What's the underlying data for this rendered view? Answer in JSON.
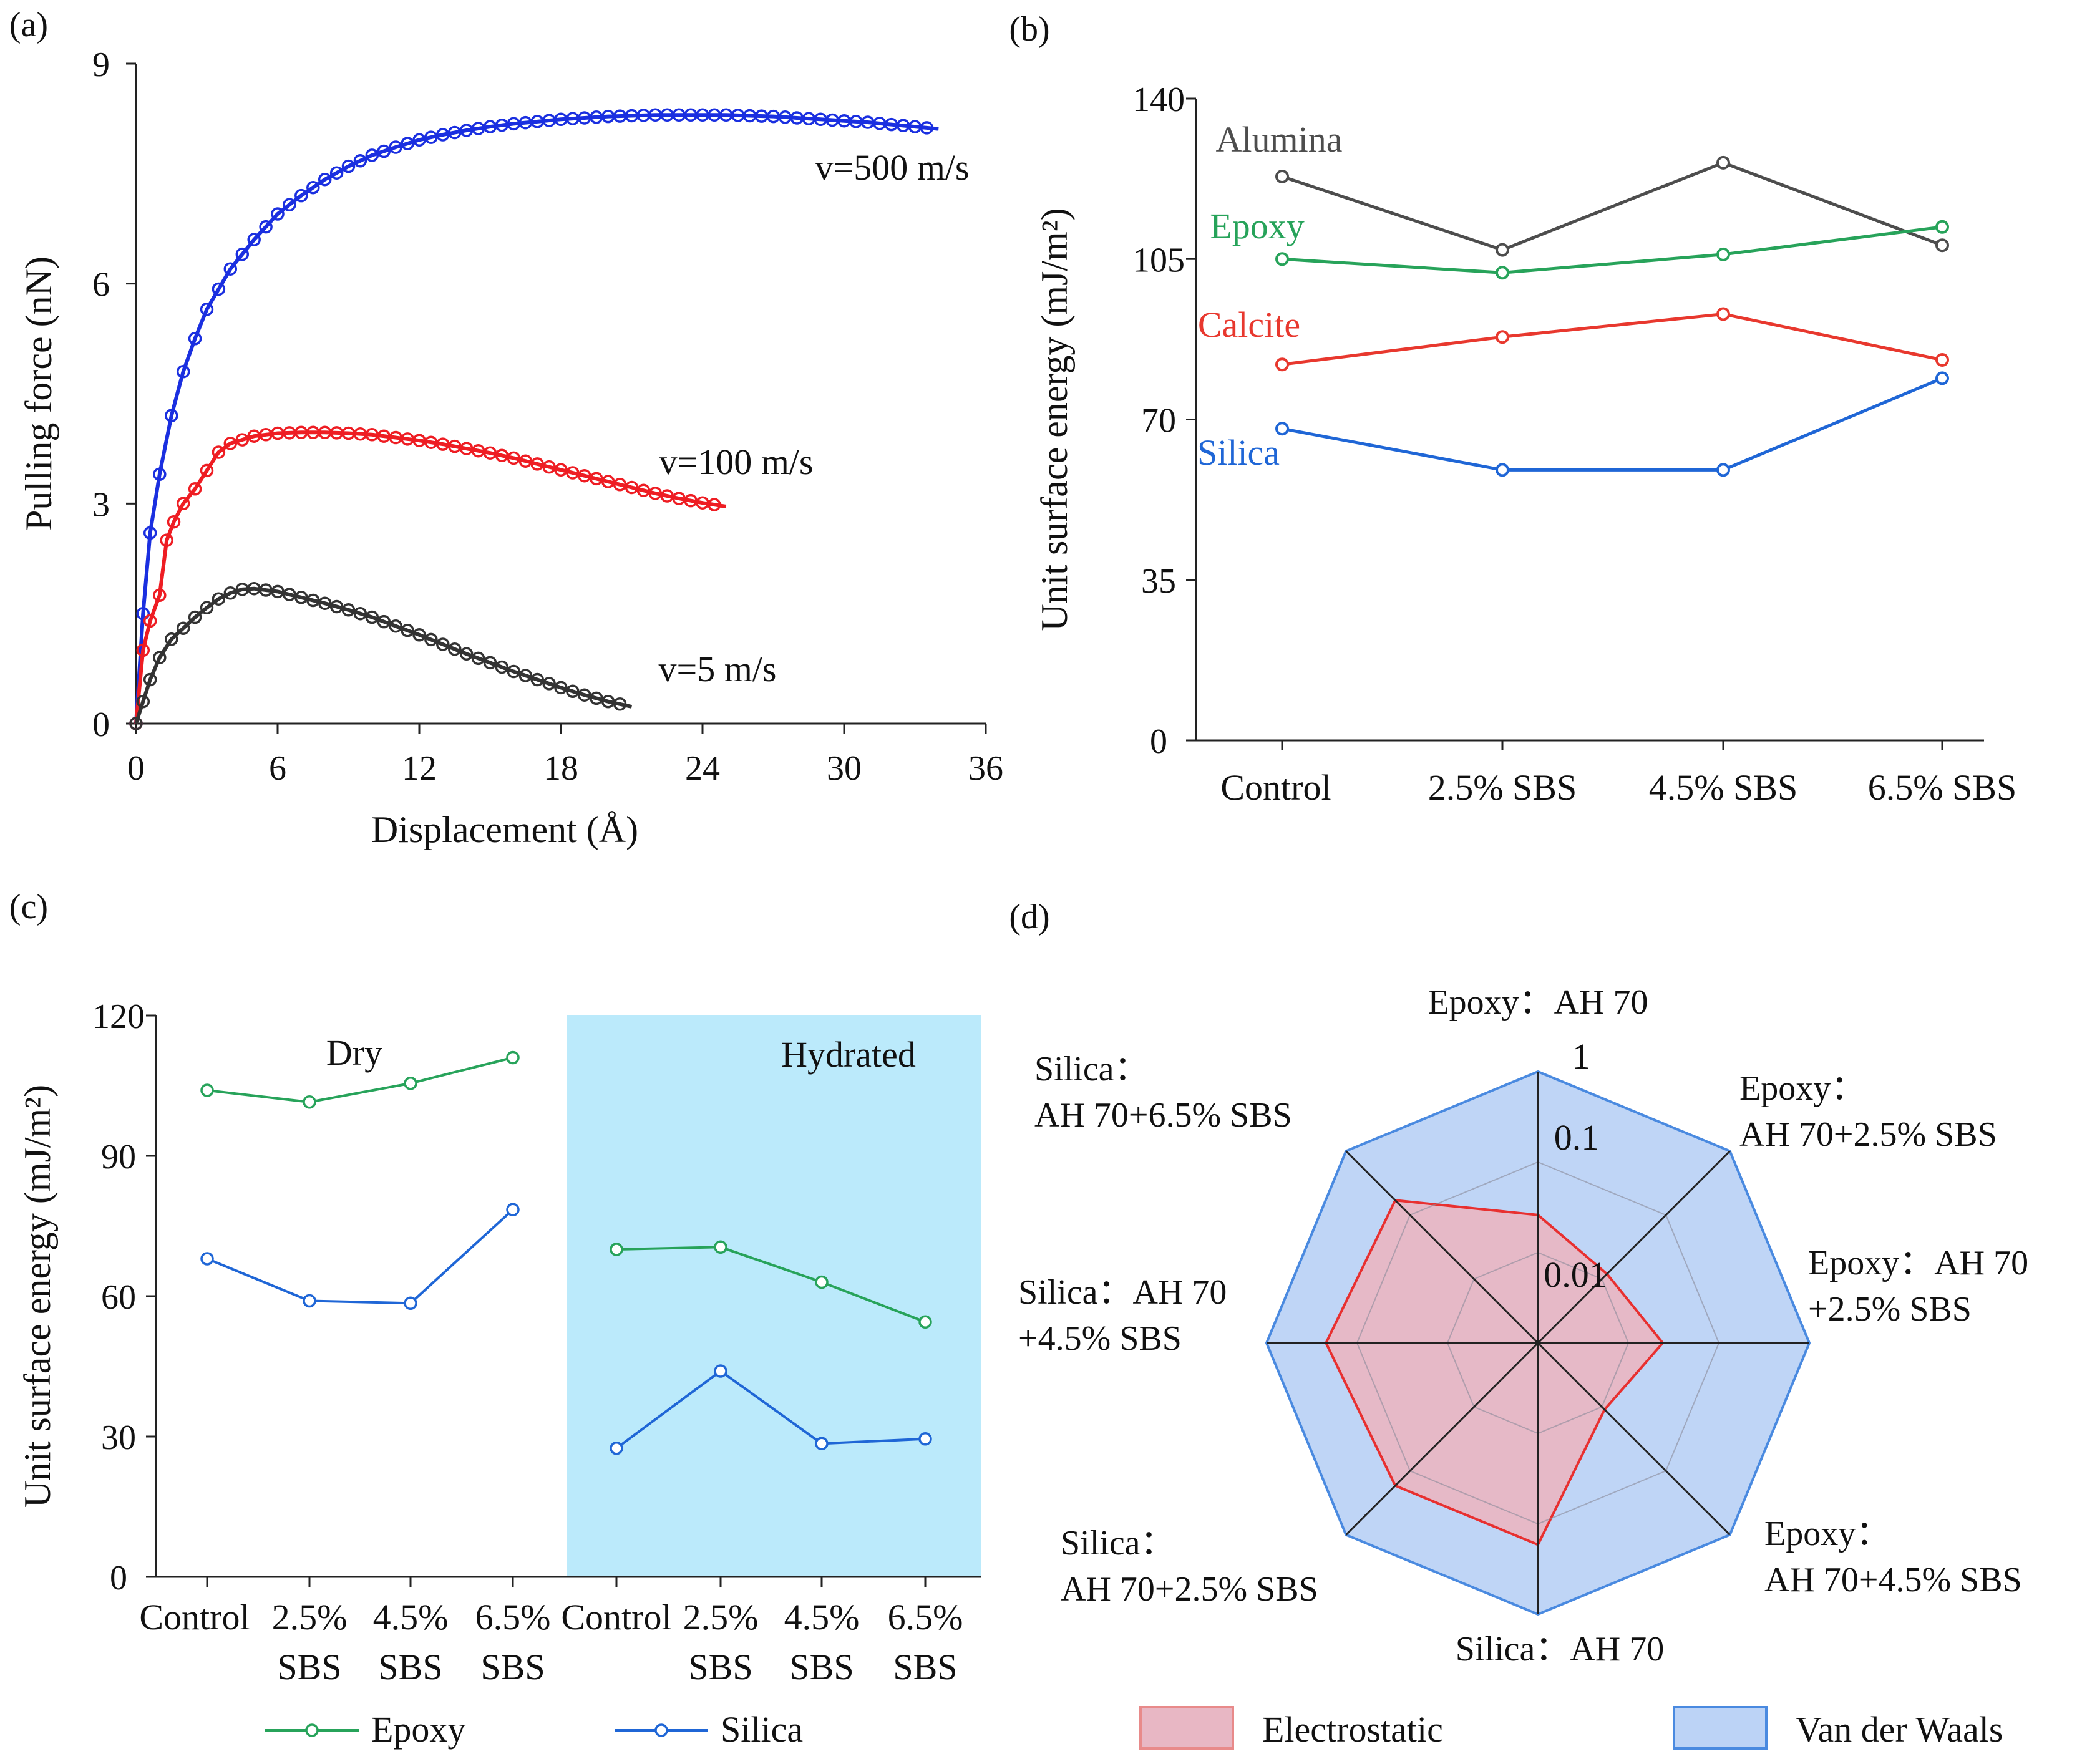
{
  "colors": {
    "blue500": "#1a2fe0",
    "red100": "#ee1d23",
    "black5": "#333333",
    "alumina": "#4d4d4d",
    "epoxy": "#27a35a",
    "calcite": "#e8382e",
    "silica": "#1f66d6",
    "hydrated_bg": "#bbeafb",
    "radar_vdw": "#bcd3f6",
    "radar_vdw_stroke": "#4a8ae0",
    "radar_es": "#e8b7c4",
    "radar_es_stroke": "#e83030"
  },
  "chart_data": [
    {
      "panel": "(a)",
      "type": "line",
      "xlabel": "Displacement (Å)",
      "ylabel": "Pulling force (nN)",
      "xlim": [
        0,
        36
      ],
      "ylim": [
        0,
        9
      ],
      "xticks": [
        "0",
        "6",
        "12",
        "18",
        "24",
        "30",
        "36"
      ],
      "yticks": [
        "0",
        "3",
        "6",
        "9"
      ],
      "series": [
        {
          "name": "v=500 m/s",
          "label": "v=500 m/s",
          "color_key": "blue500",
          "x": [
            0,
            0.3,
            0.6,
            1,
            1.5,
            2,
            2.5,
            3,
            4,
            5,
            6,
            7,
            8,
            9,
            10,
            11,
            12,
            13,
            14,
            15,
            16,
            17,
            18,
            19,
            20,
            21,
            22,
            23,
            24,
            25,
            26,
            27,
            28,
            29,
            30,
            31,
            32,
            33,
            34
          ],
          "y": [
            0,
            1.5,
            2.6,
            3.4,
            4.2,
            4.8,
            5.25,
            5.65,
            6.2,
            6.6,
            6.95,
            7.2,
            7.42,
            7.6,
            7.75,
            7.86,
            7.96,
            8.03,
            8.09,
            8.14,
            8.18,
            8.21,
            8.24,
            8.26,
            8.28,
            8.29,
            8.3,
            8.3,
            8.3,
            8.3,
            8.29,
            8.28,
            8.26,
            8.24,
            8.22,
            8.2,
            8.17,
            8.14,
            8.11
          ]
        },
        {
          "name": "v=100 m/s",
          "label": "v=100 m/s",
          "color_key": "red100",
          "x": [
            0,
            0.3,
            0.6,
            1,
            1.3,
            1.6,
            2,
            2.5,
            3,
            3.5,
            4,
            5,
            6,
            7,
            8,
            9,
            10,
            11,
            12,
            13,
            14,
            15,
            16,
            17,
            18,
            19,
            20,
            21,
            22,
            23,
            24,
            25
          ],
          "y": [
            0,
            1.0,
            1.4,
            1.75,
            2.5,
            2.75,
            3.0,
            3.2,
            3.45,
            3.7,
            3.82,
            3.92,
            3.96,
            3.97,
            3.97,
            3.96,
            3.94,
            3.9,
            3.86,
            3.81,
            3.75,
            3.69,
            3.62,
            3.54,
            3.46,
            3.38,
            3.3,
            3.22,
            3.14,
            3.07,
            3.01,
            2.96
          ]
        },
        {
          "name": "v=5 m/s",
          "label": "v=5 m/s",
          "color_key": "black5",
          "x": [
            0,
            0.3,
            0.6,
            1,
            1.5,
            2,
            2.5,
            3,
            3.5,
            4,
            4.5,
            5,
            6,
            7,
            8,
            9,
            10,
            11,
            12,
            13,
            14,
            15,
            16,
            17,
            18,
            19,
            20,
            21
          ],
          "y": [
            0,
            0.3,
            0.6,
            0.9,
            1.15,
            1.3,
            1.45,
            1.58,
            1.7,
            1.78,
            1.83,
            1.84,
            1.8,
            1.72,
            1.64,
            1.55,
            1.45,
            1.33,
            1.21,
            1.08,
            0.95,
            0.83,
            0.71,
            0.6,
            0.49,
            0.39,
            0.3,
            0.23
          ]
        }
      ]
    },
    {
      "panel": "(b)",
      "type": "line",
      "ylabel": "Unit surface energy (mJ/m²)",
      "ylim": [
        0,
        140
      ],
      "yticks": [
        "0",
        "35",
        "70",
        "105",
        "140"
      ],
      "categories": [
        "Control",
        "2.5% SBS",
        "4.5% SBS",
        "6.5% SBS"
      ],
      "series": [
        {
          "name": "Alumina",
          "color_key": "alumina",
          "values": [
            123,
            107,
            126,
            108
          ]
        },
        {
          "name": "Epoxy",
          "color_key": "epoxy",
          "values": [
            105,
            102,
            106,
            112
          ]
        },
        {
          "name": "Calcite",
          "color_key": "calcite",
          "values": [
            82,
            88,
            93,
            83
          ]
        },
        {
          "name": "Silica",
          "color_key": "silica",
          "values": [
            68,
            59,
            59,
            79
          ]
        }
      ]
    },
    {
      "panel": "(c)",
      "type": "line",
      "ylabel": "Unit surface energy (mJ/m²)",
      "ylim": [
        0,
        120
      ],
      "yticks": [
        "0",
        "30",
        "60",
        "90",
        "120"
      ],
      "categories": [
        "Control",
        "2.5% SBS",
        "4.5% SBS",
        "6.5% SBS",
        "Control",
        "2.5% SBS",
        "4.5% SBS",
        "6.5% SBS"
      ],
      "category_lines": [
        [
          "Control"
        ],
        [
          "2.5%",
          "SBS"
        ],
        [
          "4.5%",
          "SBS"
        ],
        [
          "6.5%",
          "SBS"
        ],
        [
          "Control"
        ],
        [
          "2.5%",
          "SBS"
        ],
        [
          "4.5%",
          "SBS"
        ],
        [
          "6.5%",
          "SBS"
        ]
      ],
      "regions": [
        "Dry",
        "Hydrated"
      ],
      "series": [
        {
          "name": "Epoxy",
          "color_key": "epoxy",
          "values": [
            104,
            101.5,
            105.5,
            111,
            70,
            70.5,
            63,
            54.5
          ]
        },
        {
          "name": "Silica",
          "color_key": "silica",
          "values": [
            68,
            59,
            58.5,
            78.5,
            27.5,
            44,
            28.5,
            29.5
          ]
        }
      ],
      "legend": [
        "Epoxy",
        "Silica"
      ]
    },
    {
      "panel": "(d)",
      "type": "radar",
      "scale": "log",
      "rings": [
        "0.01",
        "0.1",
        "1"
      ],
      "ring_values": [
        0.01,
        0.1,
        1
      ],
      "axes": [
        {
          "lines": [
            "Epoxy：AH 70"
          ]
        },
        {
          "lines": [
            "Epoxy：",
            "AH 70+2.5% SBS"
          ]
        },
        {
          "lines": [
            "Epoxy：AH 70",
            "+2.5% SBS"
          ]
        },
        {
          "lines": [
            "Epoxy：",
            "AH 70+4.5% SBS"
          ]
        },
        {
          "lines": [
            "Silica：AH 70"
          ]
        },
        {
          "lines": [
            "Silica：",
            "AH 70+2.5% SBS"
          ]
        },
        {
          "lines": [
            "Silica：AH 70",
            "+4.5% SBS"
          ]
        },
        {
          "lines": [
            "Silica：",
            "AH 70+6.5% SBS"
          ]
        }
      ],
      "series": [
        {
          "name": "Van der Waals",
          "color_key": "radar_vdw",
          "values": [
            1,
            1,
            1,
            1,
            1,
            1,
            1,
            1
          ]
        },
        {
          "name": "Electrostatic",
          "color_key": "radar_es",
          "values": [
            0.026,
            0.012,
            0.024,
            0.011,
            0.17,
            0.17,
            0.22,
            0.17
          ]
        }
      ],
      "legend": [
        "Electrostatic",
        "Van der Waals"
      ]
    }
  ]
}
